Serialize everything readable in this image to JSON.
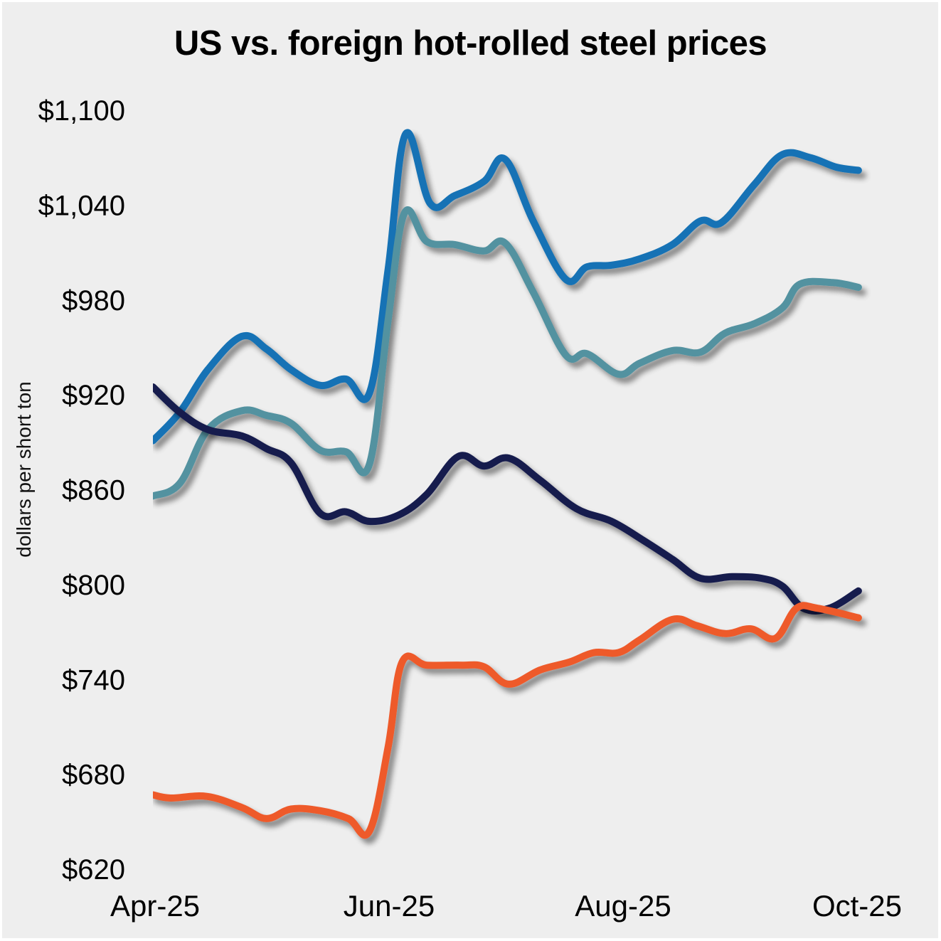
{
  "chart_data": {
    "type": "line",
    "title": "US vs. foreign hot-rolled steel prices",
    "xlabel": "",
    "ylabel": "dollars per short ton",
    "ylim": [
      620,
      1100
    ],
    "xlim": [
      0,
      6.05
    ],
    "x_unit": "months since Apr-25",
    "yticks": [
      1100,
      1040,
      980,
      920,
      860,
      800,
      740,
      680,
      620
    ],
    "ytick_labels": [
      "$1,100",
      "$1,040",
      "$980",
      "$920",
      "$860",
      "$800",
      "$740",
      "$680",
      "$620"
    ],
    "xticks": [
      0,
      2,
      4,
      6
    ],
    "xtick_labels": [
      "Apr-25",
      "Jun-25",
      "Aug-25",
      "Oct-25"
    ],
    "grid": false,
    "legend": "none",
    "series": [
      {
        "name": "series-blue",
        "color": "#1372B5",
        "x": [
          0,
          0.23,
          0.47,
          0.76,
          0.97,
          1.18,
          1.43,
          1.65,
          1.85,
          2.01,
          2.16,
          2.37,
          2.58,
          2.83,
          3.01,
          3.25,
          3.53,
          3.71,
          3.92,
          4.16,
          4.44,
          4.68,
          4.86,
          5.14,
          5.38,
          5.62,
          5.84,
          6.03
        ],
        "values": [
          891,
          909,
          936,
          957,
          949,
          936,
          926,
          930,
          921,
          999,
          1085,
          1041,
          1046,
          1055,
          1069,
          1030,
          993,
          1001,
          1002,
          1006,
          1015,
          1030,
          1029,
          1053,
          1072,
          1070,
          1064,
          1062
        ]
      },
      {
        "name": "series-teal",
        "color": "#5292A0",
        "x": [
          0,
          0.23,
          0.47,
          0.76,
          0.97,
          1.18,
          1.43,
          1.65,
          1.85,
          2.01,
          2.15,
          2.34,
          2.58,
          2.83,
          3.01,
          3.25,
          3.53,
          3.71,
          3.98,
          4.16,
          4.44,
          4.68,
          4.89,
          5.14,
          5.38,
          5.53,
          5.81,
          6.03
        ],
        "values": [
          856,
          864,
          898,
          910,
          907,
          902,
          885,
          884,
          876,
          967,
          1035,
          1017,
          1015,
          1011,
          1016,
          985,
          945,
          946,
          933,
          940,
          948,
          947,
          959,
          965,
          975,
          990,
          991,
          988
        ]
      },
      {
        "name": "series-navy",
        "color": "#151B4E",
        "x": [
          0,
          0.23,
          0.47,
          0.76,
          0.97,
          1.18,
          1.43,
          1.65,
          1.85,
          2.1,
          2.34,
          2.61,
          2.83,
          3.04,
          3.31,
          3.62,
          3.92,
          4.19,
          4.44,
          4.68,
          4.95,
          5.2,
          5.38,
          5.56,
          5.78,
          6.03
        ],
        "values": [
          925,
          909,
          898,
          894,
          886,
          877,
          845,
          846,
          840,
          844,
          857,
          881,
          875,
          880,
          866,
          848,
          840,
          828,
          816,
          804,
          805,
          804,
          799,
          785,
          785,
          796
        ]
      },
      {
        "name": "series-orange",
        "color": "#EE5A2C",
        "x": [
          0,
          0.15,
          0.46,
          0.76,
          0.97,
          1.18,
          1.43,
          1.67,
          1.85,
          2.01,
          2.13,
          2.34,
          2.64,
          2.83,
          3.04,
          3.31,
          3.56,
          3.77,
          3.98,
          4.16,
          4.44,
          4.65,
          4.89,
          5.11,
          5.32,
          5.5,
          5.68,
          6.03
        ],
        "values": [
          667,
          665,
          666,
          659,
          652,
          658,
          657,
          652,
          644,
          697,
          751,
          749,
          749,
          748,
          737,
          746,
          751,
          757,
          757,
          765,
          778,
          774,
          769,
          772,
          766,
          785,
          785,
          779
        ]
      }
    ]
  }
}
